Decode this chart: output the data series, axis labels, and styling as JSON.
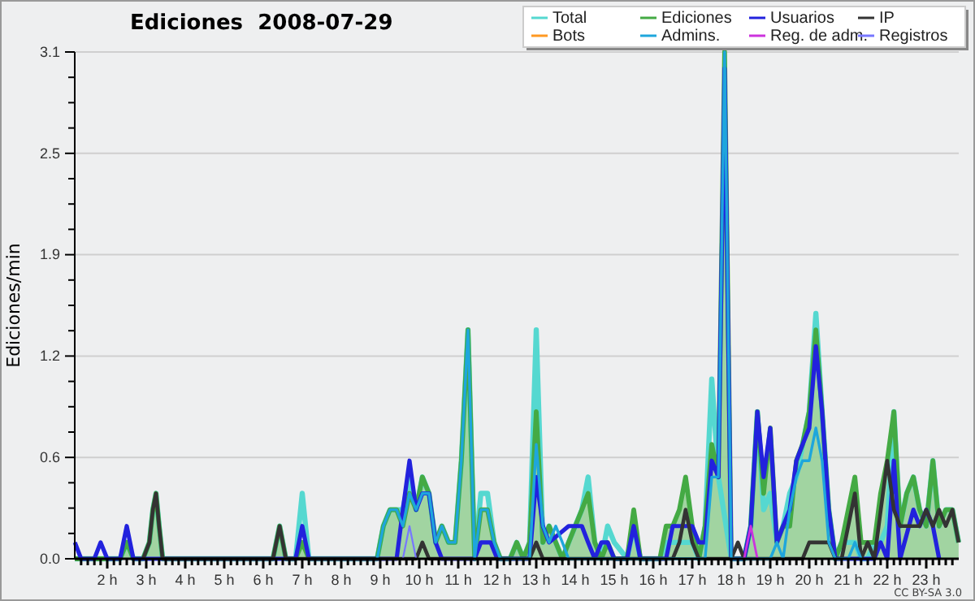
{
  "chart_data": {
    "type": "line",
    "title": "Ediciones  2008-07-29",
    "ylabel": "Ediciones/min",
    "annotations": [
      "CC BY-SA 3.0"
    ],
    "grid": "y",
    "legend": "top right",
    "line_style": "solid",
    "marker": "none",
    "xlim": [
      1.1667,
      23.8333
    ],
    "ylim": [
      0,
      3.1
    ],
    "yticks": [
      {
        "value": 0,
        "label": "0.0"
      },
      {
        "value": 0.155,
        "label": null
      },
      {
        "value": 0.31,
        "label": null
      },
      {
        "value": 0.465,
        "label": null
      },
      {
        "value": 0.62,
        "label": "0.6"
      },
      {
        "value": 0.775,
        "label": null
      },
      {
        "value": 0.93,
        "label": null
      },
      {
        "value": 1.085,
        "label": null
      },
      {
        "value": 1.24,
        "label": "1.2"
      },
      {
        "value": 1.395,
        "label": null
      },
      {
        "value": 1.55,
        "label": null
      },
      {
        "value": 1.705,
        "label": null
      },
      {
        "value": 1.86,
        "label": "1.9"
      },
      {
        "value": 2.015,
        "label": null
      },
      {
        "value": 2.17,
        "label": null
      },
      {
        "value": 2.325,
        "label": null
      },
      {
        "value": 2.48,
        "label": "2.5"
      },
      {
        "value": 2.635,
        "label": null
      },
      {
        "value": 2.79,
        "label": null
      },
      {
        "value": 2.945,
        "label": null
      },
      {
        "value": 3.1,
        "label": "3.1"
      }
    ],
    "xticks": [
      {
        "value": 1.33,
        "label": null
      },
      {
        "value": 1.5,
        "label": null
      },
      {
        "value": 1.67,
        "label": null
      },
      {
        "value": 1.83,
        "label": null
      },
      {
        "value": 2,
        "label": "2 h"
      },
      {
        "value": 2.17,
        "label": null
      },
      {
        "value": 2.33,
        "label": null
      },
      {
        "value": 2.5,
        "label": null
      },
      {
        "value": 2.67,
        "label": null
      },
      {
        "value": 2.83,
        "label": null
      },
      {
        "value": 3,
        "label": "3 h"
      },
      {
        "value": 3.17,
        "label": null
      },
      {
        "value": 3.33,
        "label": null
      },
      {
        "value": 3.5,
        "label": null
      },
      {
        "value": 3.67,
        "label": null
      },
      {
        "value": 3.83,
        "label": null
      },
      {
        "value": 4,
        "label": "4 h"
      },
      {
        "value": 4.17,
        "label": null
      },
      {
        "value": 4.33,
        "label": null
      },
      {
        "value": 4.5,
        "label": null
      },
      {
        "value": 4.67,
        "label": null
      },
      {
        "value": 4.83,
        "label": null
      },
      {
        "value": 5,
        "label": "5 h"
      },
      {
        "value": 5.17,
        "label": null
      },
      {
        "value": 5.33,
        "label": null
      },
      {
        "value": 5.5,
        "label": null
      },
      {
        "value": 5.67,
        "label": null
      },
      {
        "value": 5.83,
        "label": null
      },
      {
        "value": 6,
        "label": "6 h"
      },
      {
        "value": 6.17,
        "label": null
      },
      {
        "value": 6.33,
        "label": null
      },
      {
        "value": 6.5,
        "label": null
      },
      {
        "value": 6.67,
        "label": null
      },
      {
        "value": 6.83,
        "label": null
      },
      {
        "value": 7,
        "label": "7 h"
      },
      {
        "value": 7.17,
        "label": null
      },
      {
        "value": 7.33,
        "label": null
      },
      {
        "value": 7.5,
        "label": null
      },
      {
        "value": 7.67,
        "label": null
      },
      {
        "value": 7.83,
        "label": null
      },
      {
        "value": 8,
        "label": "8 h"
      },
      {
        "value": 8.17,
        "label": null
      },
      {
        "value": 8.33,
        "label": null
      },
      {
        "value": 8.5,
        "label": null
      },
      {
        "value": 8.67,
        "label": null
      },
      {
        "value": 8.83,
        "label": null
      },
      {
        "value": 9,
        "label": "9 h"
      },
      {
        "value": 9.17,
        "label": null
      },
      {
        "value": 9.33,
        "label": null
      },
      {
        "value": 9.5,
        "label": null
      },
      {
        "value": 9.67,
        "label": null
      },
      {
        "value": 9.83,
        "label": null
      },
      {
        "value": 10,
        "label": "10 h"
      },
      {
        "value": 10.17,
        "label": null
      },
      {
        "value": 10.33,
        "label": null
      },
      {
        "value": 10.5,
        "label": null
      },
      {
        "value": 10.67,
        "label": null
      },
      {
        "value": 10.83,
        "label": null
      },
      {
        "value": 11,
        "label": "11 h"
      },
      {
        "value": 11.17,
        "label": null
      },
      {
        "value": 11.33,
        "label": null
      },
      {
        "value": 11.5,
        "label": null
      },
      {
        "value": 11.67,
        "label": null
      },
      {
        "value": 11.83,
        "label": null
      },
      {
        "value": 12,
        "label": "12 h"
      },
      {
        "value": 12.17,
        "label": null
      },
      {
        "value": 12.33,
        "label": null
      },
      {
        "value": 12.5,
        "label": null
      },
      {
        "value": 12.67,
        "label": null
      },
      {
        "value": 12.83,
        "label": null
      },
      {
        "value": 13,
        "label": "13 h"
      },
      {
        "value": 13.17,
        "label": null
      },
      {
        "value": 13.33,
        "label": null
      },
      {
        "value": 13.5,
        "label": null
      },
      {
        "value": 13.67,
        "label": null
      },
      {
        "value": 13.83,
        "label": null
      },
      {
        "value": 14,
        "label": "14 h"
      },
      {
        "value": 14.17,
        "label": null
      },
      {
        "value": 14.33,
        "label": null
      },
      {
        "value": 14.5,
        "label": null
      },
      {
        "value": 14.67,
        "label": null
      },
      {
        "value": 14.83,
        "label": null
      },
      {
        "value": 15,
        "label": "15 h"
      },
      {
        "value": 15.17,
        "label": null
      },
      {
        "value": 15.33,
        "label": null
      },
      {
        "value": 15.5,
        "label": null
      },
      {
        "value": 15.67,
        "label": null
      },
      {
        "value": 15.83,
        "label": null
      },
      {
        "value": 16,
        "label": "16 h"
      },
      {
        "value": 16.17,
        "label": null
      },
      {
        "value": 16.33,
        "label": null
      },
      {
        "value": 16.5,
        "label": null
      },
      {
        "value": 16.67,
        "label": null
      },
      {
        "value": 16.83,
        "label": null
      },
      {
        "value": 17,
        "label": "17 h"
      },
      {
        "value": 17.17,
        "label": null
      },
      {
        "value": 17.33,
        "label": null
      },
      {
        "value": 17.5,
        "label": null
      },
      {
        "value": 17.67,
        "label": null
      },
      {
        "value": 17.83,
        "label": null
      },
      {
        "value": 18,
        "label": "18 h"
      },
      {
        "value": 18.17,
        "label": null
      },
      {
        "value": 18.33,
        "label": null
      },
      {
        "value": 18.5,
        "label": null
      },
      {
        "value": 18.67,
        "label": null
      },
      {
        "value": 18.83,
        "label": null
      },
      {
        "value": 19,
        "label": "19 h"
      },
      {
        "value": 19.17,
        "label": null
      },
      {
        "value": 19.33,
        "label": null
      },
      {
        "value": 19.5,
        "label": null
      },
      {
        "value": 19.67,
        "label": null
      },
      {
        "value": 19.83,
        "label": null
      },
      {
        "value": 20,
        "label": "20 h"
      },
      {
        "value": 20.17,
        "label": null
      },
      {
        "value": 20.33,
        "label": null
      },
      {
        "value": 20.5,
        "label": null
      },
      {
        "value": 20.67,
        "label": null
      },
      {
        "value": 20.83,
        "label": null
      },
      {
        "value": 21,
        "label": "21 h"
      },
      {
        "value": 21.17,
        "label": null
      },
      {
        "value": 21.33,
        "label": null
      },
      {
        "value": 21.5,
        "label": null
      },
      {
        "value": 21.67,
        "label": null
      },
      {
        "value": 21.83,
        "label": null
      },
      {
        "value": 22,
        "label": "22 h"
      },
      {
        "value": 22.17,
        "label": null
      },
      {
        "value": 22.33,
        "label": null
      },
      {
        "value": 22.5,
        "label": null
      },
      {
        "value": 22.67,
        "label": null
      },
      {
        "value": 22.83,
        "label": null
      },
      {
        "value": 23,
        "label": "23 h"
      },
      {
        "value": 23.17,
        "label": null
      },
      {
        "value": 23.33,
        "label": null
      },
      {
        "value": 23.5,
        "label": null
      },
      {
        "value": 23.67,
        "label": null
      }
    ],
    "series": [
      {
        "name": "Total",
        "color": "#55d8d0",
        "x": [
          1.17,
          2.33,
          2.5,
          2.67,
          2.92,
          3.08,
          3.17,
          3.25,
          3.33,
          3.42,
          6.25,
          6.42,
          6.58,
          6.83,
          7.0,
          7.17,
          8.92,
          9.08,
          9.25,
          9.42,
          9.58,
          9.75,
          9.92,
          10.08,
          10.25,
          10.42,
          10.58,
          10.75,
          10.92,
          11.08,
          11.25,
          11.42,
          11.58,
          11.75,
          11.92,
          12.08,
          12.33,
          12.5,
          12.67,
          12.83,
          13.0,
          13.17,
          13.33,
          13.5,
          13.67,
          13.83,
          14.0,
          14.17,
          14.33,
          14.5,
          14.67,
          14.83,
          15.0,
          15.33,
          15.5,
          15.67,
          16.17,
          16.33,
          16.5,
          16.67,
          16.83,
          17.0,
          17.17,
          17.33,
          17.5,
          17.67,
          18.0,
          18.33,
          18.5,
          18.67,
          18.83,
          19.0,
          19.17,
          19.33,
          19.5,
          19.67,
          19.83,
          20.0,
          20.17,
          20.33,
          20.5,
          20.67,
          20.83,
          21.0,
          21.17,
          21.33,
          21.5,
          21.67,
          21.83,
          22.0,
          22.17,
          22.33,
          22.5,
          22.67,
          22.83,
          23.0,
          23.17,
          23.33,
          23.5,
          23.67,
          23.83
        ],
        "values": [
          0,
          0,
          0.1,
          0,
          0,
          0.1,
          0.3,
          0.4,
          0.2,
          0,
          0,
          0.2,
          0,
          0,
          0.4,
          0,
          0,
          0.2,
          0.3,
          0.3,
          0.3,
          0.5,
          0.3,
          0.5,
          0.4,
          0.1,
          0.2,
          0.1,
          0.1,
          0.6,
          1.4,
          0,
          0.4,
          0.4,
          0.1,
          0,
          0,
          0.1,
          0,
          0.1,
          1.4,
          0.1,
          0.2,
          0.1,
          0,
          0.1,
          0.2,
          0.3,
          0.5,
          0.1,
          0,
          0.2,
          0.1,
          0,
          0.2,
          0,
          0,
          0.1,
          0.1,
          0.1,
          0.1,
          0.1,
          0,
          0.2,
          1.1,
          0.5,
          0,
          0,
          0.2,
          0.9,
          0.3,
          0.4,
          0.1,
          0.2,
          0.4,
          0.5,
          0.7,
          0.9,
          1.5,
          0.9,
          0.3,
          0,
          0.1,
          0.1,
          0.1,
          0,
          0,
          0.1,
          0.1,
          0.2,
          0.9,
          0.2,
          0.4,
          0.5,
          0.3,
          0.2,
          0.6,
          0.2,
          0.3,
          0.3,
          0.1
        ]
      },
      {
        "name": "Ediciones",
        "type": "area",
        "color": "#44aa44",
        "x": [
          1.17,
          2.33,
          2.5,
          2.67,
          2.92,
          3.08,
          3.17,
          3.25,
          3.33,
          3.42,
          6.25,
          6.42,
          6.58,
          6.83,
          7.0,
          7.17,
          8.92,
          9.08,
          9.25,
          9.42,
          9.58,
          9.75,
          9.92,
          10.08,
          10.25,
          10.42,
          10.58,
          10.75,
          10.92,
          11.08,
          11.25,
          11.42,
          11.58,
          11.75,
          11.92,
          12.08,
          12.33,
          12.5,
          12.67,
          12.83,
          13.0,
          13.17,
          13.33,
          13.5,
          13.67,
          13.83,
          14.0,
          14.17,
          14.33,
          14.5,
          14.67,
          14.83,
          15.0,
          15.33,
          15.5,
          15.67,
          16.17,
          16.33,
          16.5,
          16.67,
          16.83,
          17.0,
          17.17,
          17.33,
          17.5,
          17.67,
          17.83,
          18.0,
          18.33,
          18.5,
          18.67,
          18.83,
          19.0,
          19.17,
          19.33,
          19.5,
          19.67,
          19.83,
          20.0,
          20.17,
          20.33,
          20.5,
          20.67,
          20.83,
          21.0,
          21.17,
          21.33,
          21.5,
          21.67,
          21.83,
          22.0,
          22.17,
          22.33,
          22.5,
          22.67,
          22.83,
          23.0,
          23.17,
          23.33,
          23.5,
          23.67,
          23.83
        ],
        "values": [
          0,
          0,
          0.1,
          0,
          0,
          0.1,
          0.3,
          0.4,
          0.2,
          0,
          0,
          0.2,
          0,
          0,
          0.1,
          0,
          0,
          0.2,
          0.3,
          0.3,
          0.2,
          0.4,
          0.3,
          0.5,
          0.4,
          0.1,
          0.2,
          0.1,
          0.1,
          0.6,
          1.4,
          0,
          0.3,
          0.3,
          0.1,
          0,
          0,
          0.1,
          0,
          0.1,
          0.9,
          0.1,
          0.2,
          0.1,
          0,
          0.1,
          0.2,
          0.3,
          0.4,
          0.1,
          0,
          0.1,
          0,
          0,
          0.3,
          0,
          0,
          0.2,
          0.2,
          0.3,
          0.5,
          0.2,
          0,
          0.2,
          0.7,
          0.5,
          3.1,
          0,
          0,
          0.2,
          0.9,
          0.4,
          0.8,
          0.1,
          0.2,
          0.2,
          0.6,
          0.7,
          0.9,
          1.4,
          0.9,
          0.3,
          0,
          0.1,
          0.3,
          0.5,
          0.1,
          0.1,
          0.1,
          0.4,
          0.6,
          0.9,
          0.2,
          0.4,
          0.5,
          0.3,
          0.2,
          0.6,
          0.2,
          0.3,
          0.3,
          0.1
        ]
      },
      {
        "name": "Usuarios",
        "color": "#2222dd",
        "x": [
          1.17,
          1.33,
          1.67,
          1.83,
          2.0,
          2.33,
          2.5,
          2.67,
          6.83,
          7.0,
          7.17,
          9.42,
          9.58,
          9.75,
          9.92,
          10.08,
          10.25,
          10.42,
          10.58,
          11.42,
          11.58,
          11.83,
          12.0,
          12.83,
          13.0,
          13.17,
          13.33,
          13.83,
          14.17,
          14.33,
          14.5,
          14.67,
          14.83,
          15.0,
          15.33,
          15.5,
          15.67,
          16.33,
          16.5,
          17.0,
          17.17,
          17.33,
          17.5,
          17.67,
          17.83,
          18.0,
          18.33,
          18.5,
          18.67,
          18.83,
          19.0,
          19.17,
          19.33,
          19.5,
          19.67,
          19.83,
          20.0,
          20.17,
          20.33,
          20.5,
          20.67,
          21.67,
          21.83,
          22.0,
          22.17,
          22.33,
          22.67,
          22.83,
          23.0,
          23.17,
          23.33
        ],
        "values": [
          0.1,
          0,
          0,
          0.1,
          0,
          0,
          0.2,
          0,
          0,
          0.2,
          0,
          0,
          0.3,
          0.6,
          0.3,
          0.4,
          0.4,
          0.1,
          0,
          0,
          0.1,
          0.1,
          0,
          0,
          0.5,
          0.2,
          0.1,
          0.2,
          0.2,
          0.1,
          0,
          0.1,
          0.1,
          0,
          0,
          0.2,
          0,
          0,
          0.2,
          0.2,
          0.1,
          0.1,
          0.6,
          0.5,
          3.0,
          0,
          0,
          0.2,
          0.9,
          0.5,
          0.8,
          0.1,
          0.2,
          0.3,
          0.6,
          0.7,
          0.8,
          1.3,
          0.9,
          0.3,
          0,
          0,
          0.1,
          0,
          0.6,
          0,
          0.3,
          0.2,
          0.3,
          0.2,
          0
        ]
      },
      {
        "name": "IP",
        "color": "#333333",
        "x": [
          2.92,
          3.08,
          3.17,
          3.25,
          3.33,
          3.42,
          6.25,
          6.42,
          6.58,
          9.92,
          10.08,
          10.25,
          12.83,
          13.0,
          13.17,
          16.5,
          16.67,
          16.83,
          17.0,
          17.17,
          18.0,
          18.17,
          18.33,
          19.83,
          20.0,
          20.5,
          20.67,
          20.83,
          21.17,
          21.33,
          21.5,
          21.67,
          22.0,
          22.17,
          22.33,
          22.5,
          22.83,
          23.0,
          23.17,
          23.33,
          23.5,
          23.67,
          23.83
        ],
        "values": [
          0,
          0.1,
          0.3,
          0.4,
          0.2,
          0,
          0,
          0.2,
          0,
          0,
          0.1,
          0,
          0,
          0.1,
          0,
          0,
          0.1,
          0.3,
          0.1,
          0,
          0,
          0.1,
          0,
          0,
          0.1,
          0.1,
          0,
          0,
          0.4,
          0,
          0.1,
          0,
          0.6,
          0.3,
          0.2,
          0.2,
          0.2,
          0.3,
          0.2,
          0.3,
          0.2,
          0.3,
          0.1
        ]
      },
      {
        "name": "Bots",
        "color": "#ff9922"
      },
      {
        "name": "Admins.",
        "color": "#1ea6dc",
        "x": [
          8.92,
          9.08,
          9.25,
          9.42,
          9.58,
          9.75,
          9.92,
          10.08,
          10.25,
          10.42,
          10.58,
          10.75,
          10.92,
          11.08,
          11.25,
          11.42,
          11.58,
          11.75,
          11.92,
          12.08,
          12.83,
          13.0,
          13.17,
          13.33,
          13.5,
          13.67,
          13.83,
          17.33,
          17.5,
          17.67,
          17.83,
          18.0,
          19.0,
          19.17,
          19.33,
          19.5,
          19.67,
          19.83,
          20.0,
          20.17,
          20.33,
          20.5,
          20.67,
          21.0,
          21.17,
          21.33
        ],
        "values": [
          0,
          0.2,
          0.3,
          0.3,
          0.2,
          0.4,
          0.3,
          0.4,
          0.4,
          0.1,
          0.2,
          0.1,
          0.1,
          0.6,
          1.4,
          0,
          0.3,
          0.3,
          0.1,
          0,
          0,
          0.7,
          0.2,
          0.1,
          0.2,
          0.1,
          0,
          0,
          0.5,
          0.5,
          3.1,
          0,
          0,
          0.1,
          0,
          0.3,
          0.5,
          0.6,
          0.6,
          0.8,
          0.6,
          0.1,
          0,
          0,
          0.1,
          0
        ]
      },
      {
        "name": "Reg. de adm.",
        "color": "#cc33dd",
        "x": [
          18.33,
          18.5,
          18.67
        ],
        "values": [
          0,
          0.2,
          0
        ]
      },
      {
        "name": "Registros",
        "color": "#7777ff",
        "x": [
          9.58,
          9.75,
          9.92
        ],
        "values": [
          0,
          0.2,
          0
        ]
      }
    ]
  }
}
